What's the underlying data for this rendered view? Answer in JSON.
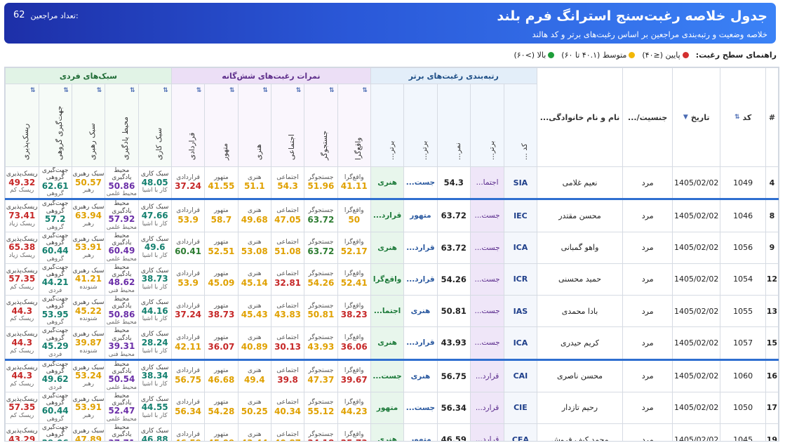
{
  "header": {
    "title": "جدول خلاصه رغبت‌سنج استرانگ فرم بلند",
    "subtitle": "خلاصه وضعیت و رتبه‌بندی مراجعین بر اساس رغبت‌های برتر و کد هالند",
    "count_label": "تعداد مراجعین:",
    "count_value": "62"
  },
  "legend": {
    "title": "راهنمای سطح رغبت:",
    "low": "پایین (≤۴۰)",
    "mid": "متوسط (۴۰.۱ تا ۶۰)",
    "high": "بالا (>۶۰)",
    "colors": {
      "low": "#d32f2f",
      "mid": "#f2b705",
      "high": "#1e9e3a"
    }
  },
  "columns": {
    "row_no": "#",
    "code": "کد",
    "date": "تاریخ",
    "gender": "جنسیت/...",
    "name": "نام و نام خانوادگی...",
    "group_top": "رتبه‌بندی رغبت‌های برتر",
    "group_scores": "نمرات رغبت‌های شش‌گانه",
    "group_styles": "سبک‌های فردی",
    "top_cols": [
      "کد ...",
      "برتر...",
      "نمر...",
      "برتر...",
      "برتر..."
    ],
    "score_cols": [
      "واقع‌گرا",
      "جستجوگر",
      "اجتماعی",
      "هنری",
      "متهور",
      "قراردادی"
    ],
    "style_cols": [
      "سبک کاری",
      "محیط یادگیری",
      "سبک رهبری",
      "جهت‌گیری گروهی",
      "ریسک‌پذیری"
    ]
  },
  "rows": [
    {
      "no": "4",
      "id": "1049",
      "date": "1405/02/02",
      "gender": "مرد",
      "name": "نعیم غلامی",
      "code": "SIA",
      "t1": "اجتما...",
      "score": "54.3",
      "t2": "جست...",
      "t3": "هنری",
      "sep": false,
      "scores": [
        [
          "واقع‌گرا",
          "41.11",
          "m"
        ],
        [
          "جستجوگر",
          "51.96",
          "m"
        ],
        [
          "اجتماعی",
          "54.3",
          "m"
        ],
        [
          "هنری",
          "51.1",
          "m"
        ],
        [
          "متهور",
          "41.55",
          "m"
        ],
        [
          "قراردادی",
          "37.24",
          "l"
        ]
      ],
      "styles": [
        [
          "سبک کاری",
          "48.05",
          "کار با اشیا",
          "teal"
        ],
        [
          "محیط یادگیری",
          "50.86",
          "محیط علمی",
          "purple"
        ],
        [
          "سبک رهبری",
          "50.57",
          "رهبر",
          "orange"
        ],
        [
          "جهت‌گیری گروهی",
          "62.61",
          "گروهی",
          "teal"
        ],
        [
          "ریسک‌پذیری",
          "49.32",
          "ریسک کم",
          "red"
        ]
      ]
    },
    {
      "no": "8",
      "id": "1046",
      "date": "1405/02/02",
      "gender": "مرد",
      "name": "محسن مقتدر",
      "code": "IEC",
      "t1": "جست...",
      "score": "63.72",
      "t2": "متهور",
      "t3": "قرارد...",
      "sep": true,
      "scores": [
        [
          "واقع‌گرا",
          "50",
          "m"
        ],
        [
          "جستجوگر",
          "63.72",
          "h"
        ],
        [
          "اجتماعی",
          "47.05",
          "m"
        ],
        [
          "هنری",
          "49.68",
          "m"
        ],
        [
          "متهور",
          "58.7",
          "m"
        ],
        [
          "قراردادی",
          "53.9",
          "m"
        ]
      ],
      "styles": [
        [
          "سبک کاری",
          "47.66",
          "کار با اشیا",
          "teal"
        ],
        [
          "محیط یادگیری",
          "57.92",
          "محیط علمی",
          "purple"
        ],
        [
          "سبک رهبری",
          "63.94",
          "رهبر",
          "orange"
        ],
        [
          "جهت‌گیری گروهی",
          "57.2",
          "گروهی",
          "teal"
        ],
        [
          "ریسک‌پذیری",
          "73.41",
          "ریسک زیاد",
          "red"
        ]
      ]
    },
    {
      "no": "9",
      "id": "1056",
      "date": "1405/02/02",
      "gender": "مرد",
      "name": "واهو گمبانی",
      "code": "ICA",
      "t1": "جست...",
      "score": "63.72",
      "t2": "قرارد...",
      "t3": "هنری",
      "sep": false,
      "scores": [
        [
          "واقع‌گرا",
          "52.17",
          "m"
        ],
        [
          "جستجوگر",
          "63.72",
          "h"
        ],
        [
          "اجتماعی",
          "51.08",
          "m"
        ],
        [
          "هنری",
          "53.08",
          "m"
        ],
        [
          "متهور",
          "52.51",
          "m"
        ],
        [
          "قراردادی",
          "60.41",
          "h"
        ]
      ],
      "styles": [
        [
          "سبک کاری",
          "49.6",
          "کار با اشیا",
          "teal"
        ],
        [
          "محیط یادگیری",
          "60.49",
          "محیط علمی",
          "purple"
        ],
        [
          "سبک رهبری",
          "53.91",
          "رهبر",
          "orange"
        ],
        [
          "جهت‌گیری گروهی",
          "60.44",
          "گروهی",
          "teal"
        ],
        [
          "ریسک‌پذیری",
          "65.38",
          "ریسک زیاد",
          "red"
        ]
      ]
    },
    {
      "no": "12",
      "id": "1054",
      "date": "1405/02/02",
      "gender": "مرد",
      "name": "حمید محسنی",
      "code": "ICR",
      "t1": "جست...",
      "score": "54.26",
      "t2": "قرارد...",
      "t3": "واقع‌گرا",
      "sep": false,
      "scores": [
        [
          "واقع‌گرا",
          "52.41",
          "m"
        ],
        [
          "جستجوگر",
          "54.26",
          "m"
        ],
        [
          "اجتماعی",
          "32.81",
          "l"
        ],
        [
          "هنری",
          "45.14",
          "m"
        ],
        [
          "متهور",
          "45.09",
          "m"
        ],
        [
          "قراردادی",
          "53.9",
          "m"
        ]
      ],
      "styles": [
        [
          "سبک کاری",
          "38.73",
          "کار با اشیا",
          "teal"
        ],
        [
          "محیط یادگیری",
          "48.62",
          "محیط فنی",
          "purple"
        ],
        [
          "سبک رهبری",
          "41.21",
          "شنونده",
          "orange"
        ],
        [
          "جهت‌گیری گروهی",
          "44.21",
          "فردی",
          "teal"
        ],
        [
          "ریسک‌پذیری",
          "57.35",
          "ریسک کم",
          "red"
        ]
      ]
    },
    {
      "no": "13",
      "id": "1055",
      "date": "1405/02/02",
      "gender": "مرد",
      "name": "بادا محمدی",
      "code": "IAS",
      "t1": "جست...",
      "score": "50.81",
      "t2": "هنری",
      "t3": "اجتما...",
      "sep": false,
      "scores": [
        [
          "واقع‌گرا",
          "38.23",
          "l"
        ],
        [
          "جستجوگر",
          "50.81",
          "m"
        ],
        [
          "اجتماعی",
          "43.83",
          "m"
        ],
        [
          "هنری",
          "45.43",
          "m"
        ],
        [
          "متهور",
          "38.73",
          "l"
        ],
        [
          "قراردادی",
          "37.24",
          "l"
        ]
      ],
      "styles": [
        [
          "سبک کاری",
          "44.16",
          "کار با اشیا",
          "teal"
        ],
        [
          "محیط یادگیری",
          "50.86",
          "محیط علمی",
          "purple"
        ],
        [
          "سبک رهبری",
          "45.22",
          "شنونده",
          "orange"
        ],
        [
          "جهت‌گیری گروهی",
          "53.95",
          "گروهی",
          "teal"
        ],
        [
          "ریسک‌پذیری",
          "44.3",
          "ریسک کم",
          "red"
        ]
      ]
    },
    {
      "no": "15",
      "id": "1057",
      "date": "1405/02/02",
      "gender": "مرد",
      "name": "کریم حیدری",
      "code": "ICA",
      "t1": "جست...",
      "score": "43.93",
      "t2": "قرارد...",
      "t3": "هنری",
      "sep": false,
      "scores": [
        [
          "واقع‌گرا",
          "36.06",
          "l"
        ],
        [
          "جستجوگر",
          "43.93",
          "m"
        ],
        [
          "اجتماعی",
          "30.13",
          "l"
        ],
        [
          "هنری",
          "40.89",
          "m"
        ],
        [
          "متهور",
          "36.07",
          "l"
        ],
        [
          "قراردادی",
          "42.11",
          "m"
        ]
      ],
      "styles": [
        [
          "سبک کاری",
          "28.24",
          "کار با اشیا",
          "teal"
        ],
        [
          "محیط یادگیری",
          "39.31",
          "محیط فنی",
          "purple"
        ],
        [
          "سبک رهبری",
          "39.87",
          "شنونده",
          "orange"
        ],
        [
          "جهت‌گیری گروهی",
          "45.29",
          "فردی",
          "teal"
        ],
        [
          "ریسک‌پذیری",
          "44.3",
          "ریسک کم",
          "red"
        ]
      ]
    },
    {
      "no": "16",
      "id": "1060",
      "date": "1405/02/02",
      "gender": "مرد",
      "name": "محسن ناصری",
      "code": "CAI",
      "t1": "قرارد...",
      "score": "56.75",
      "t2": "هنری",
      "t3": "جست...",
      "sep": true,
      "scores": [
        [
          "واقع‌گرا",
          "39.67",
          "l"
        ],
        [
          "جستجوگر",
          "47.37",
          "m"
        ],
        [
          "اجتماعی",
          "39.8",
          "l"
        ],
        [
          "هنری",
          "49.4",
          "m"
        ],
        [
          "متهور",
          "46.68",
          "m"
        ],
        [
          "قراردادی",
          "56.75",
          "m"
        ]
      ],
      "styles": [
        [
          "سبک کاری",
          "38.34",
          "کار با اشیا",
          "teal"
        ],
        [
          "محیط یادگیری",
          "50.54",
          "محیط علمی",
          "purple"
        ],
        [
          "سبک رهبری",
          "53.24",
          "رهبر",
          "orange"
        ],
        [
          "جهت‌گیری گروهی",
          "49.62",
          "فردی",
          "teal"
        ],
        [
          "ریسک‌پذیری",
          "44.3",
          "ریسک کم",
          "red"
        ]
      ]
    },
    {
      "no": "17",
      "id": "1050",
      "date": "1405/02/02",
      "gender": "مرد",
      "name": "رحیم تازدار",
      "code": "CIE",
      "t1": "قرارد...",
      "score": "56.34",
      "t2": "جست...",
      "t3": "متهور",
      "sep": false,
      "scores": [
        [
          "واقع‌گرا",
          "44.23",
          "m"
        ],
        [
          "جستجوگر",
          "55.12",
          "m"
        ],
        [
          "اجتماعی",
          "40.34",
          "m"
        ],
        [
          "هنری",
          "50.25",
          "m"
        ],
        [
          "متهور",
          "54.28",
          "m"
        ],
        [
          "قراردادی",
          "56.34",
          "m"
        ]
      ],
      "styles": [
        [
          "سبک کاری",
          "44.55",
          "کار با اشیا",
          "teal"
        ],
        [
          "محیط یادگیری",
          "52.47",
          "محیط علمی",
          "purple"
        ],
        [
          "سبک رهبری",
          "53.91",
          "رهبر",
          "orange"
        ],
        [
          "جهت‌گیری گروهی",
          "60.44",
          "گروهی",
          "teal"
        ],
        [
          "ریسک‌پذیری",
          "57.35",
          "ریسک کم",
          "red"
        ]
      ]
    },
    {
      "no": "19",
      "id": "1045",
      "date": "1405/02/02",
      "gender": "مرد",
      "name": "محمد کیف فروش",
      "code": "CEA",
      "t1": "قرارد...",
      "score": "46.59",
      "t2": "متهور",
      "t3": "هنری",
      "sep": false,
      "scores": [
        [
          "واقع‌گرا",
          "25.73",
          "l"
        ],
        [
          "جستجوگر",
          "34.18",
          "l"
        ],
        [
          "اجتماعی",
          "40.87",
          "m"
        ],
        [
          "هنری",
          "43.44",
          "m"
        ],
        [
          "متهور",
          "45.09",
          "m"
        ],
        [
          "قراردادی",
          "46.59",
          "m"
        ]
      ],
      "styles": [
        [
          "سبک کاری",
          "46.88",
          "کار با اشیا",
          "teal"
        ],
        [
          "محیط یادگیری",
          "37.71",
          "محیط فنی",
          "purple"
        ],
        [
          "سبک رهبری",
          "47.89",
          "شنونده",
          "orange"
        ],
        [
          "جهت‌گیری گروهی",
          "29.06",
          "فردی",
          "teal"
        ],
        [
          "ریسک‌پذیری",
          "43.29",
          "ریسک کم",
          "red"
        ]
      ]
    }
  ]
}
